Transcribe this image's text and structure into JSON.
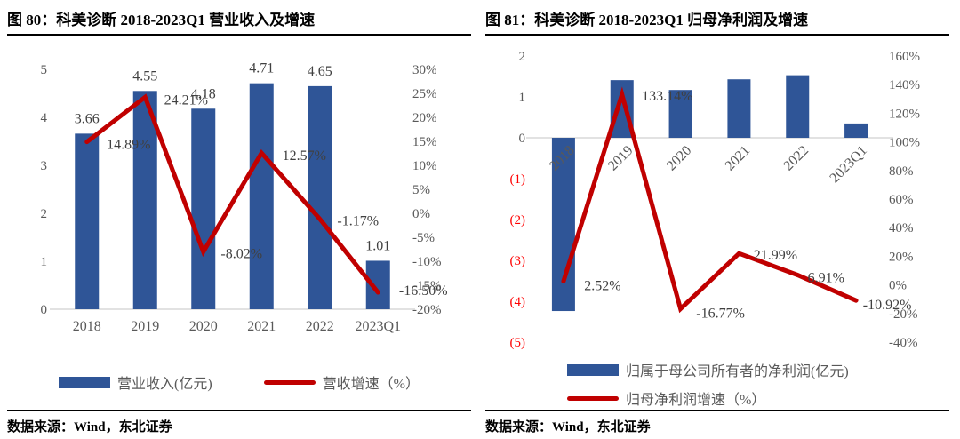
{
  "colors": {
    "bar_blue": "#2F5597",
    "line_red": "#C00000",
    "axis_text": "#595959",
    "data_label": "#404040",
    "negative_tick": "#FF0000",
    "baseline": "#D9D9D9"
  },
  "figures": [
    {
      "title": "图 80：科美诊断 2018-2023Q1 营业收入及增速",
      "source": "数据来源：Wind，东北证券",
      "legend": [
        {
          "marker": "bar",
          "label": "营业收入(亿元)",
          "color": "#2F5597"
        },
        {
          "marker": "line",
          "label": "营收增速（%）",
          "color": "#C00000"
        }
      ]
    },
    {
      "title": "图 81：科美诊断 2018-2023Q1 归母净利润及增速",
      "source": "数据来源：Wind，东北证券",
      "legend": [
        {
          "marker": "bar",
          "label": "归属于母公司所有者的净利润(亿元)",
          "color": "#2F5597"
        },
        {
          "marker": "line",
          "label": "归母净利润增速（%）",
          "color": "#C00000"
        }
      ]
    }
  ],
  "chart_data": [
    {
      "type": "combo_bar_line",
      "title": "图 80：科美诊断 2018-2023Q1 营业收入及增速",
      "categories": [
        "2018",
        "2019",
        "2020",
        "2021",
        "2022",
        "2023Q1"
      ],
      "series": [
        {
          "name": "营业收入(亿元)",
          "kind": "bar",
          "axis": "left",
          "color": "#2F5597",
          "values": [
            3.66,
            4.55,
            4.18,
            4.71,
            4.65,
            1.01
          ],
          "data_labels": [
            "3.66",
            "4.55",
            "4.18",
            "4.71",
            "4.65",
            "1.01"
          ]
        },
        {
          "name": "营收增速（%）",
          "kind": "line",
          "axis": "right",
          "color": "#C00000",
          "values": [
            14.89,
            24.21,
            -8.02,
            12.57,
            -1.17,
            -16.5
          ],
          "data_labels": [
            "14.89%",
            "24.21%",
            "-8.02%",
            "12.57%",
            "-1.17%",
            "-16.50%"
          ],
          "label_offsets": [
            [
              47,
              8
            ],
            [
              46,
              8
            ],
            [
              43,
              7
            ],
            [
              48,
              8
            ],
            [
              43,
              7
            ],
            [
              51,
              3
            ]
          ]
        }
      ],
      "left_axis": {
        "min": 0,
        "max": 5,
        "tick_labels": [
          "5",
          "4",
          "3",
          "2",
          "1",
          "0"
        ]
      },
      "right_axis": {
        "min": -20,
        "max": 30,
        "tick_labels": [
          "30%",
          "25%",
          "20%",
          "15%",
          "10%",
          "5%",
          "0%",
          "-5%",
          "-10%",
          "-15%",
          "-20%"
        ]
      },
      "grid": false,
      "x_label_rotation": 0,
      "legend_position": "bottom-center"
    },
    {
      "type": "combo_bar_line",
      "title": "图 81：科美诊断 2018-2023Q1 归母净利润及增速",
      "categories": [
        "2018",
        "2019",
        "2020",
        "2021",
        "2022",
        "2023Q1"
      ],
      "series": [
        {
          "name": "归属于母公司所有者的净利润(亿元)",
          "kind": "bar",
          "axis": "left",
          "color": "#2F5597",
          "values": [
            -4.24,
            1.41,
            1.17,
            1.43,
            1.53,
            0.35
          ]
        },
        {
          "name": "归母净利润增速（%）",
          "kind": "line",
          "axis": "right",
          "color": "#C00000",
          "values": [
            2.52,
            133.14,
            -16.77,
            21.99,
            6.91,
            -10.92
          ],
          "data_labels": [
            "2.52%",
            "133.14%",
            "-16.77%",
            "21.99%",
            "6.91%",
            "-10.92%"
          ],
          "label_offsets": [
            [
              44,
              10
            ],
            [
              51,
              7
            ],
            [
              45,
              10
            ],
            [
              41,
              7
            ],
            [
              32,
              8
            ],
            [
              35,
              10
            ]
          ]
        }
      ],
      "left_axis": {
        "min": -5,
        "max": 2,
        "tick_labels": [
          "2",
          "1",
          "0",
          "(1)",
          "(2)",
          "(3)",
          "(4)",
          "(5)"
        ],
        "negative_tick_color": "#FF0000"
      },
      "right_axis": {
        "min": -40,
        "max": 160,
        "tick_labels": [
          "160%",
          "140%",
          "120%",
          "100%",
          "80%",
          "60%",
          "40%",
          "20%",
          "0%",
          "-20%",
          "-40%"
        ]
      },
      "grid": false,
      "x_label_rotation": -45,
      "legend_position": "bottom-left"
    }
  ]
}
